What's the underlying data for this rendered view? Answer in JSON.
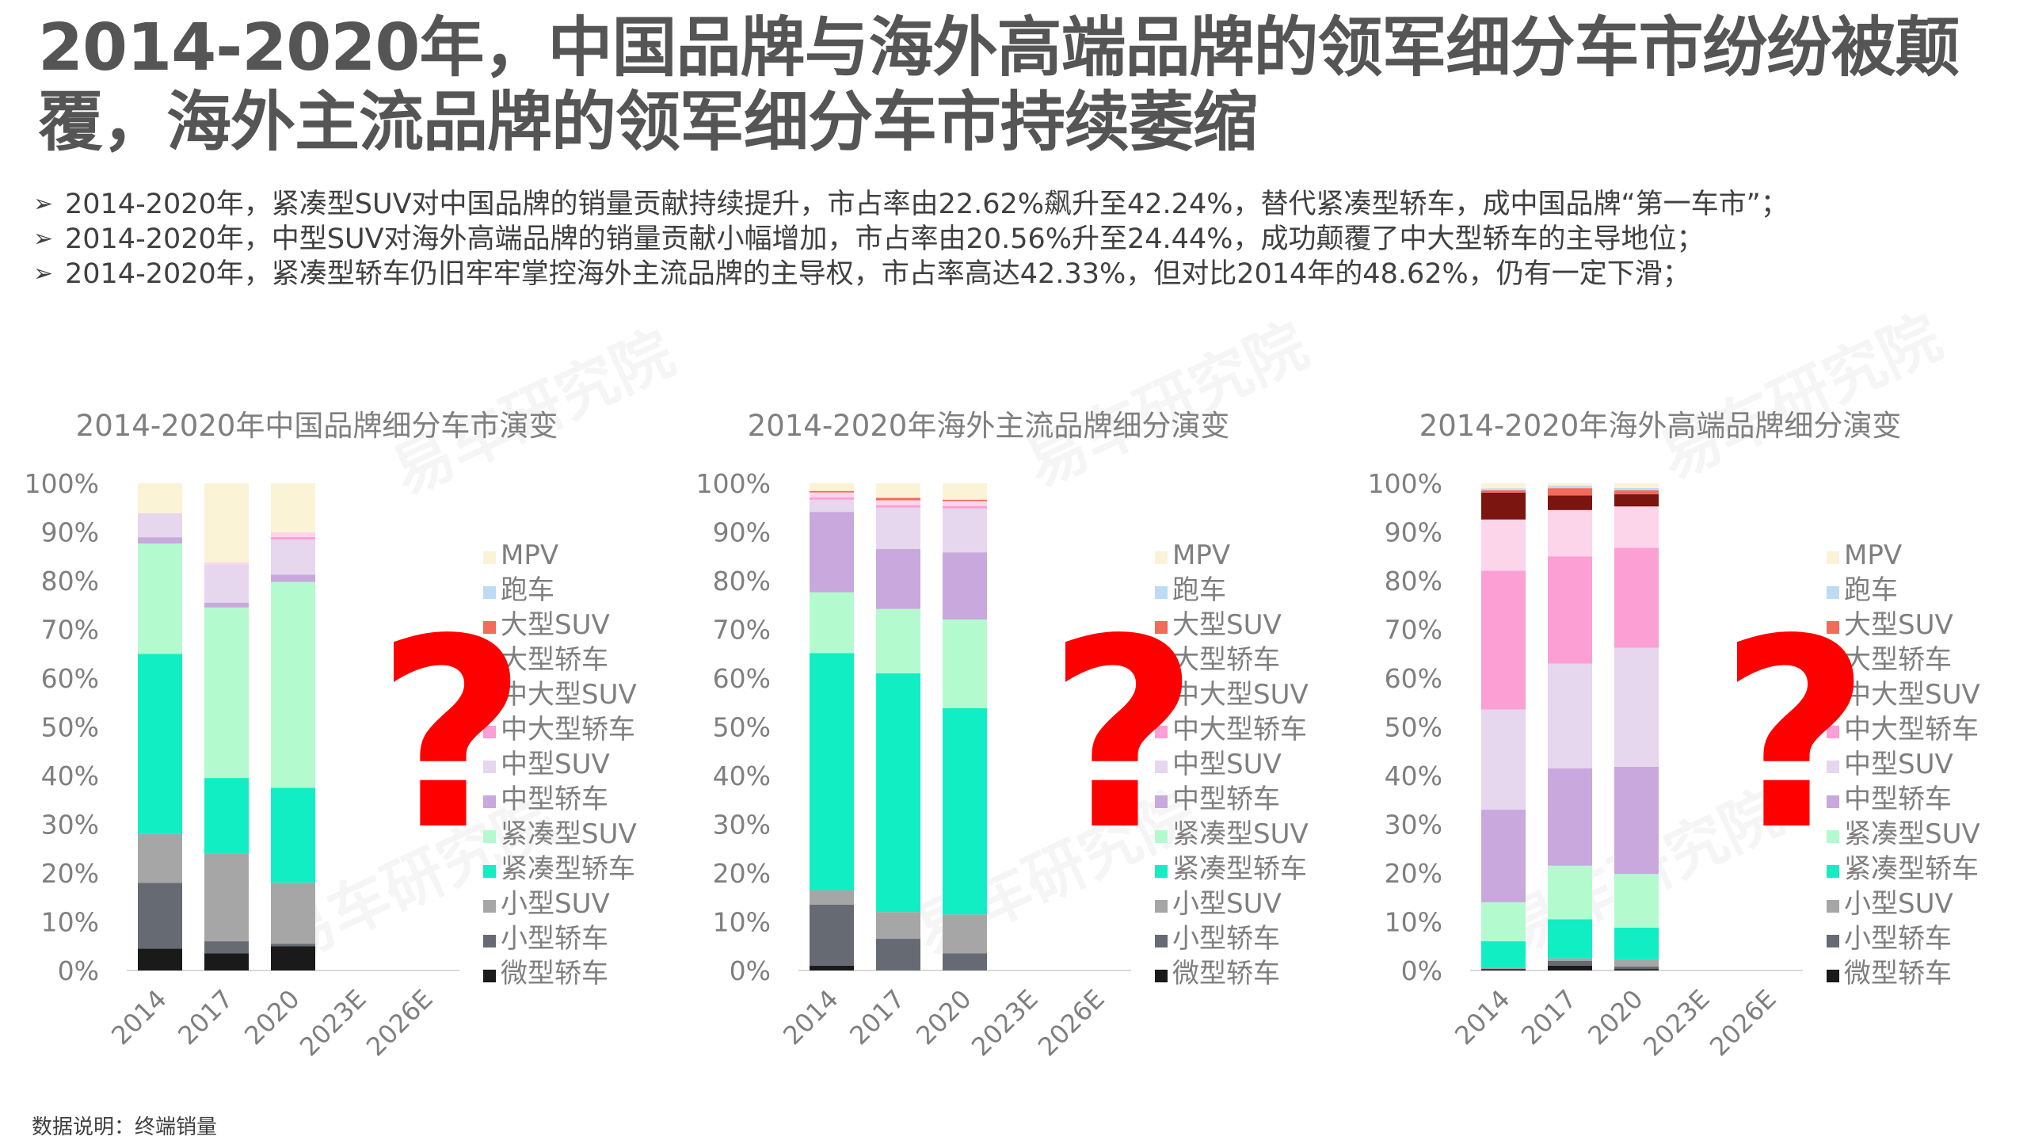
{
  "title": "2014-2020年，中国品牌与海外高端品牌的领军细分车市纷纷被颠覆，海外主流品牌的领军细分车市持续萎缩",
  "bullets": [
    "2014-2020年，紧凑型SUV对中国品牌的销量贡献持续提升，市占率由22.62%飙升至42.24%，替代紧凑型轿车，成中国品牌“第一车市”；",
    "2014-2020年，中型SUV对海外高端品牌的销量贡献小幅增加，市占率由20.56%升至24.44%，成功颠覆了中大型轿车的主导地位；",
    "2014-2020年，紧凑型轿车仍旧牢牢掌控海外主流品牌的主导权，市占率高达42.33%，但对比2014年的48.62%，仍有一定下滑；"
  ],
  "bullet_arrow": "➢",
  "watermark_text": "易车研究院",
  "question_mark": "?",
  "footnote": "数据说明：终端销量",
  "colors": {
    "微型轿车": "#1a1a1a",
    "小型轿车": "#666b73",
    "小型SUV": "#a6a6a6",
    "紧凑型轿车": "#11eec4",
    "紧凑型SUV": "#b3fbcf",
    "中型轿车": "#c8a8dd",
    "中型SUV": "#e6d6ee",
    "中大型轿车": "#fb9fd4",
    "中大型SUV": "#fdd5ea",
    "大型轿车": "#7a1510",
    "大型SUV": "#f26b5b",
    "跑车": "#bcdcf5",
    "MPV": "#fbf3d6",
    "question": "#ff0000"
  },
  "chart_data": [
    {
      "type": "bar",
      "stacked": true,
      "title": "2014-2020年中国品牌细分车市演变",
      "categories": [
        "2014",
        "2017",
        "2020",
        "2023E",
        "2026E"
      ],
      "yticks": [
        "0%",
        "10%",
        "20%",
        "30%",
        "40%",
        "50%",
        "60%",
        "70%",
        "80%",
        "90%",
        "100%"
      ],
      "ylim": [
        0,
        100
      ],
      "legend_position": "right",
      "legend": [
        "MPV",
        "跑车",
        "大型SUV",
        "大型轿车",
        "中大型SUV",
        "中大型轿车",
        "中型SUV",
        "中型轿车",
        "紧凑型SUV",
        "紧凑型轿车",
        "小型SUV",
        "小型轿车",
        "微型轿车"
      ],
      "series": [
        {
          "name": "微型轿车",
          "values": [
            4.5,
            3.5,
            5.0,
            null,
            null
          ]
        },
        {
          "name": "小型轿车",
          "values": [
            13.5,
            2.5,
            0.5,
            null,
            null
          ]
        },
        {
          "name": "小型SUV",
          "values": [
            10.0,
            18.0,
            12.5,
            null,
            null
          ]
        },
        {
          "name": "紧凑型轿车",
          "values": [
            37.0,
            15.5,
            19.5,
            null,
            null
          ]
        },
        {
          "name": "紧凑型SUV",
          "values": [
            22.62,
            35.0,
            42.24,
            null,
            null
          ]
        },
        {
          "name": "中型轿车",
          "values": [
            1.3,
            1.0,
            1.5,
            null,
            null
          ]
        },
        {
          "name": "中型SUV",
          "values": [
            4.9,
            7.8,
            7.2,
            null,
            null
          ]
        },
        {
          "name": "中大型轿车",
          "values": [
            0,
            0,
            0.5,
            null,
            null
          ]
        },
        {
          "name": "中大型SUV",
          "values": [
            0,
            0.5,
            1.0,
            null,
            null
          ]
        },
        {
          "name": "大型轿车",
          "values": [
            0,
            0,
            0,
            null,
            null
          ]
        },
        {
          "name": "大型SUV",
          "values": [
            0,
            0,
            0,
            null,
            null
          ]
        },
        {
          "name": "跑车",
          "values": [
            0,
            0,
            0,
            null,
            null
          ]
        },
        {
          "name": "MPV",
          "values": [
            6.18,
            16.2,
            10.06,
            null,
            null
          ]
        }
      ]
    },
    {
      "type": "bar",
      "stacked": true,
      "title": "2014-2020年海外主流品牌细分演变",
      "categories": [
        "2014",
        "2017",
        "2020",
        "2023E",
        "2026E"
      ],
      "yticks": [
        "0%",
        "10%",
        "20%",
        "30%",
        "40%",
        "50%",
        "60%",
        "70%",
        "80%",
        "90%",
        "100%"
      ],
      "ylim": [
        0,
        100
      ],
      "legend_position": "right",
      "legend": [
        "MPV",
        "跑车",
        "大型SUV",
        "大型轿车",
        "中大型SUV",
        "中大型轿车",
        "中型SUV",
        "中型轿车",
        "紧凑型SUV",
        "紧凑型轿车",
        "小型SUV",
        "小型轿车",
        "微型轿车"
      ],
      "series": [
        {
          "name": "微型轿车",
          "values": [
            1.0,
            0,
            0,
            null,
            null
          ]
        },
        {
          "name": "小型轿车",
          "values": [
            12.5,
            6.5,
            3.5,
            null,
            null
          ]
        },
        {
          "name": "小型SUV",
          "values": [
            3.0,
            5.5,
            8.0,
            null,
            null
          ]
        },
        {
          "name": "紧凑型轿车",
          "values": [
            48.62,
            49.0,
            42.33,
            null,
            null
          ]
        },
        {
          "name": "紧凑型SUV",
          "values": [
            12.5,
            13.2,
            18.2,
            null,
            null
          ]
        },
        {
          "name": "中型轿车",
          "values": [
            16.5,
            12.3,
            13.8,
            null,
            null
          ]
        },
        {
          "name": "中型SUV",
          "values": [
            2.5,
            8.5,
            9.0,
            null,
            null
          ]
        },
        {
          "name": "中大型轿车",
          "values": [
            0.5,
            0.5,
            0.5,
            null,
            null
          ]
        },
        {
          "name": "中大型SUV",
          "values": [
            1.0,
            1.0,
            1.0,
            null,
            null
          ]
        },
        {
          "name": "大型轿车",
          "values": [
            0,
            0,
            0,
            null,
            null
          ]
        },
        {
          "name": "大型SUV",
          "values": [
            0.3,
            0.5,
            0.3,
            null,
            null
          ]
        },
        {
          "name": "跑车",
          "values": [
            0,
            0,
            0,
            null,
            null
          ]
        },
        {
          "name": "MPV",
          "values": [
            1.58,
            3.0,
            3.37,
            null,
            null
          ]
        }
      ]
    },
    {
      "type": "bar",
      "stacked": true,
      "title": "2014-2020年海外高端品牌细分演变",
      "categories": [
        "2014",
        "2017",
        "2020",
        "2023E",
        "2026E"
      ],
      "yticks": [
        "0%",
        "10%",
        "20%",
        "30%",
        "40%",
        "50%",
        "60%",
        "70%",
        "80%",
        "90%",
        "100%"
      ],
      "ylim": [
        0,
        100
      ],
      "legend_position": "right",
      "legend": [
        "MPV",
        "跑车",
        "大型SUV",
        "大型轿车",
        "中大型SUV",
        "中大型轿车",
        "中型SUV",
        "中型轿车",
        "紧凑型SUV",
        "紧凑型轿车",
        "小型SUV",
        "小型轿车",
        "微型轿车"
      ],
      "series": [
        {
          "name": "微型轿车",
          "values": [
            0.3,
            1.0,
            0.3,
            null,
            null
          ]
        },
        {
          "name": "小型轿车",
          "values": [
            0,
            1.0,
            0.5,
            null,
            null
          ]
        },
        {
          "name": "小型SUV",
          "values": [
            0.2,
            0.5,
            1.5,
            null,
            null
          ]
        },
        {
          "name": "紧凑型轿车",
          "values": [
            5.5,
            8.0,
            6.5,
            null,
            null
          ]
        },
        {
          "name": "紧凑型SUV",
          "values": [
            8.0,
            11.0,
            11.0,
            null,
            null
          ]
        },
        {
          "name": "中型轿车",
          "values": [
            19.0,
            20.0,
            22.0,
            null,
            null
          ]
        },
        {
          "name": "中型SUV",
          "values": [
            20.56,
            21.5,
            24.44,
            null,
            null
          ]
        },
        {
          "name": "中大型轿车",
          "values": [
            28.5,
            22.0,
            20.5,
            null,
            null
          ]
        },
        {
          "name": "中大型SUV",
          "values": [
            10.5,
            9.5,
            8.5,
            null,
            null
          ]
        },
        {
          "name": "大型轿车",
          "values": [
            5.5,
            3.0,
            2.5,
            null,
            null
          ]
        },
        {
          "name": "大型SUV",
          "values": [
            0.5,
            1.5,
            0.8,
            null,
            null
          ]
        },
        {
          "name": "跑车",
          "values": [
            0.4,
            0.5,
            0.5,
            null,
            null
          ]
        },
        {
          "name": "MPV",
          "values": [
            1.04,
            0.5,
            0.96,
            null,
            null
          ]
        }
      ]
    }
  ]
}
